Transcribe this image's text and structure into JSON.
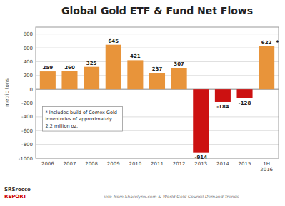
{
  "chart_data": {
    "type": "bar",
    "title": "Global Gold ETF & Fund Net Flows",
    "ylabel": "metric tons",
    "categories": [
      "2006",
      "2007",
      "2008",
      "2009",
      "2010",
      "2011",
      "2012",
      "2013",
      "2014",
      "2015",
      "1H\n2016"
    ],
    "values": [
      259,
      260,
      325,
      645,
      421,
      237,
      307,
      -914,
      -184,
      -128,
      622
    ],
    "colors": [
      "#E8943A",
      "#E8943A",
      "#E8943A",
      "#E8943A",
      "#E8943A",
      "#E8943A",
      "#E8943A",
      "#CC1111",
      "#CC1111",
      "#CC1111",
      "#E8943A"
    ],
    "ylim": [
      -1000,
      900
    ],
    "yticks": [
      -1000,
      -800,
      -600,
      -400,
      -200,
      0,
      200,
      400,
      600,
      800
    ],
    "grid": true,
    "data_labels": true,
    "annotations": [
      "*",
      "* Includes build of Comex Gold\ninventories of approximately\n2.2 million oz.",
      "SRSrocco",
      "REPORT",
      "info from Sharelynx.com & World Gold Council Demand Trends"
    ]
  }
}
